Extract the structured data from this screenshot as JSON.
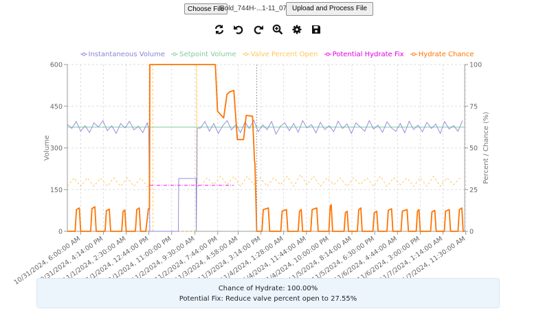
{
  "file_input": {
    "button_label": "Choose File",
    "file_name": "Bold_744H-...1-11_07.csv"
  },
  "upload_button": {
    "label": "Upload and Process File"
  },
  "toolbar_icons": [
    "refresh-icon",
    "undo-icon",
    "redo-icon",
    "zoom-in-icon",
    "gear-icon",
    "save-icon"
  ],
  "colors": {
    "volume": "#8884d8",
    "setpoint": "#82ca9d",
    "valve": "#ffc658",
    "fix": "#ff00ff",
    "hydrate": "#ff7300"
  },
  "chart_data": {
    "type": "line",
    "legend": {
      "placement": "top",
      "items": [
        "Instantaneous Volume",
        "Setpoint Volume",
        "Valve Percent Open",
        "Potential Hydrate Fix",
        "Hydrate Chance"
      ]
    },
    "xlim": [
      "2024-10-31 00:00",
      "2024-11-07 11:00"
    ],
    "x_tick_labels": [
      "10/31/2024, 6:00:00 AM",
      "10/31/2024, 4:14:00 PM",
      "11/1/2024, 2:30:00 AM",
      "11/1/2024, 12:44:00 PM",
      "11/1/2024, 11:00:00 PM",
      "11/2/2024, 9:30:00 AM",
      "11/2/2024, 7:44:00 PM",
      "11/3/2024, 4:58:00 AM",
      "11/3/2024, 3:14:00 PM",
      "11/4/2024, 1:28:00 AM",
      "11/4/2024, 11:44:00 AM",
      "11/4/2024, 10:00:00 PM",
      "11/5/2024, 8:14:00 AM",
      "11/5/2024, 6:30:00 PM",
      "11/6/2024, 4:44:00 AM",
      "11/6/2024, 3:00:00 PM",
      "11/7/2024, 1:14:00 AM",
      "11/7/2024, 11:30:00 AM"
    ],
    "y_left": {
      "label": "Volume",
      "ylim": [
        0,
        600
      ],
      "ticks": [
        "0",
        "150",
        "300",
        "450",
        "600"
      ]
    },
    "y_right": {
      "label": "Percent / Chance (%)",
      "ylim": [
        0,
        100
      ],
      "ticks": [
        "0",
        "25",
        "50",
        "75",
        "100"
      ]
    },
    "grid": true,
    "series": {
      "volume": {
        "name": "Instantaneous Volume",
        "axis": "left",
        "segments": [
          {
            "start": "2024-10-31 00:00",
            "step_hours": 2,
            "values": [
              385,
              370,
              395,
              360,
              380,
              355,
              390,
              375,
              398,
              362,
              380,
              352,
              388,
              372,
              396,
              365,
              378,
              355,
              390
            ]
          },
          {
            "points": [
              [
                "2024-11-01 12:40",
                370
              ],
              [
                "2024-11-01 13:10",
                0
              ],
              [
                "2024-11-02 02:00",
                0
              ],
              [
                "2024-11-02 02:10",
                190
              ],
              [
                "2024-11-02 10:00",
                190
              ],
              [
                "2024-11-02 10:05",
                0
              ],
              [
                "2024-11-02 10:30",
                370
              ],
              [
                "2024-11-02 12:00",
                372
              ]
            ]
          },
          {
            "start": "2024-11-02 12:00",
            "step_hours": 2,
            "values": [
              372,
              395,
              360,
              388,
              352,
              380,
              398,
              365,
              385,
              355,
              392,
              370,
              400,
              358,
              383,
              366,
              395,
              350,
              378,
              390,
              362,
              388,
              356,
              398,
              372,
              384,
              354,
              392,
              366,
              380,
              358,
              396,
              370,
              386,
              352,
              390,
              375,
              360,
              398,
              368,
              382,
              356,
              394,
              372,
              360,
              388,
              354,
              396,
              366,
              382,
              358,
              392,
              370,
              386,
              352,
              395,
              368,
              380,
              360,
              398
            ]
          }
        ]
      },
      "setpoint": {
        "name": "Setpoint Volume",
        "axis": "left",
        "value": 375
      },
      "valve": {
        "name": "Valve Percent Open",
        "axis": "right",
        "segments": [
          {
            "start": "2024-10-31 00:00",
            "step_hours": 3,
            "values": [
              27,
              32,
              27,
              32,
              27,
              32,
              27,
              32,
              27,
              32,
              27,
              32,
              27
            ]
          },
          {
            "points": [
              [
                "2024-11-01 12:00",
                27
              ],
              [
                "2024-11-01 13:00",
                27
              ],
              [
                "2024-11-01 13:05",
                100
              ],
              [
                "2024-11-01 14:30",
                100
              ],
              [
                "2024-11-01 14:35",
                0
              ],
              [
                "2024-11-02 10:10",
                0
              ],
              [
                "2024-11-02 10:15",
                100
              ],
              [
                "2024-11-02 10:35",
                27
              ],
              [
                "2024-11-02 12:00",
                27
              ]
            ]
          },
          {
            "start": "2024-11-02 12:00",
            "step_hours": 3,
            "values": [
              27,
              32,
              28,
              33,
              28,
              33,
              27,
              33,
              28,
              32,
              27,
              32,
              28,
              33,
              27,
              34,
              28,
              33,
              27,
              32,
              28,
              32,
              27,
              32,
              28,
              32,
              27,
              33,
              27,
              32,
              28,
              32,
              27,
              32,
              27,
              33,
              27,
              32,
              28,
              32
            ]
          }
        ]
      },
      "fix": {
        "name": "Potential Hydrate Fix",
        "axis": "right",
        "value": 27.55,
        "from": "2024-11-01 13:10",
        "to": "2024-11-03 03:00"
      },
      "hydrate": {
        "name": "Hydrate Chance",
        "axis": "right",
        "pulses": [
          {
            "start": "2024-10-31 03:30",
            "end": "2024-10-31 06:00",
            "peak": 14
          },
          {
            "start": "2024-10-31 10:30",
            "end": "2024-10-31 13:00",
            "peak": 14.7
          },
          {
            "start": "2024-10-31 17:00",
            "end": "2024-10-31 19:30",
            "peak": 13.3
          },
          {
            "start": "2024-11-01 00:30",
            "end": "2024-11-01 02:30",
            "peak": 12.8
          },
          {
            "start": "2024-11-01 06:40",
            "end": "2024-11-01 09:00",
            "peak": 14
          },
          {
            "start": "2024-11-03 15:40",
            "end": "2024-11-03 19:10",
            "peak": 14
          },
          {
            "start": "2024-11-04 00:10",
            "end": "2024-11-04 03:20",
            "peak": 13
          },
          {
            "start": "2024-11-04 08:00",
            "end": "2024-11-04 10:00",
            "peak": 13
          },
          {
            "start": "2024-11-04 13:40",
            "end": "2024-11-04 17:00",
            "peak": 14
          },
          {
            "start": "2024-11-04 21:50",
            "end": "2024-11-04 23:30",
            "peak": 16
          },
          {
            "start": "2024-11-05 04:40",
            "end": "2024-11-05 06:40",
            "peak": 12
          },
          {
            "start": "2024-11-05 10:40",
            "end": "2024-11-05 12:50",
            "peak": 14
          },
          {
            "start": "2024-11-05 17:40",
            "end": "2024-11-05 20:00",
            "peak": 12
          },
          {
            "start": "2024-11-06 00:00",
            "end": "2024-11-06 02:40",
            "peak": 13.5
          },
          {
            "start": "2024-11-06 06:20",
            "end": "2024-11-06 09:40",
            "peak": 13
          },
          {
            "start": "2024-11-06 13:10",
            "end": "2024-11-06 15:00",
            "peak": 13
          },
          {
            "start": "2024-11-06 19:40",
            "end": "2024-11-06 22:10",
            "peak": 12.5
          },
          {
            "start": "2024-11-07 01:50",
            "end": "2024-11-07 04:40",
            "peak": 13
          },
          {
            "start": "2024-11-07 08:00",
            "end": "2024-11-07 10:20",
            "peak": 14
          }
        ],
        "event_points": [
          [
            "2024-11-01 11:20",
            0
          ],
          [
            "2024-11-01 12:30",
            13.5
          ],
          [
            "2024-11-01 13:00",
            13.5
          ],
          [
            "2024-11-01 13:10",
            100
          ],
          [
            "2024-11-02 18:40",
            100
          ],
          [
            "2024-11-02 19:40",
            72
          ],
          [
            "2024-11-02 22:25",
            68
          ],
          [
            "2024-11-02 23:55",
            82
          ],
          [
            "2024-11-03 01:00",
            83.5
          ],
          [
            "2024-11-03 03:00",
            84.5
          ],
          [
            "2024-11-03 04:35",
            55
          ],
          [
            "2024-11-03 07:25",
            55
          ],
          [
            "2024-11-03 08:35",
            69.5
          ],
          [
            "2024-11-03 11:25",
            69
          ],
          [
            "2024-11-03 12:20",
            42
          ],
          [
            "2024-11-03 12:30",
            41
          ],
          [
            "2024-11-03 13:20",
            0
          ]
        ]
      }
    },
    "cursor_time": "2024-11-03 13:20"
  },
  "result": {
    "chance_text": "Chance of Hydrate: 100.00%",
    "fix_text": "Potential Fix: Reduce valve percent open to 27.55%"
  }
}
